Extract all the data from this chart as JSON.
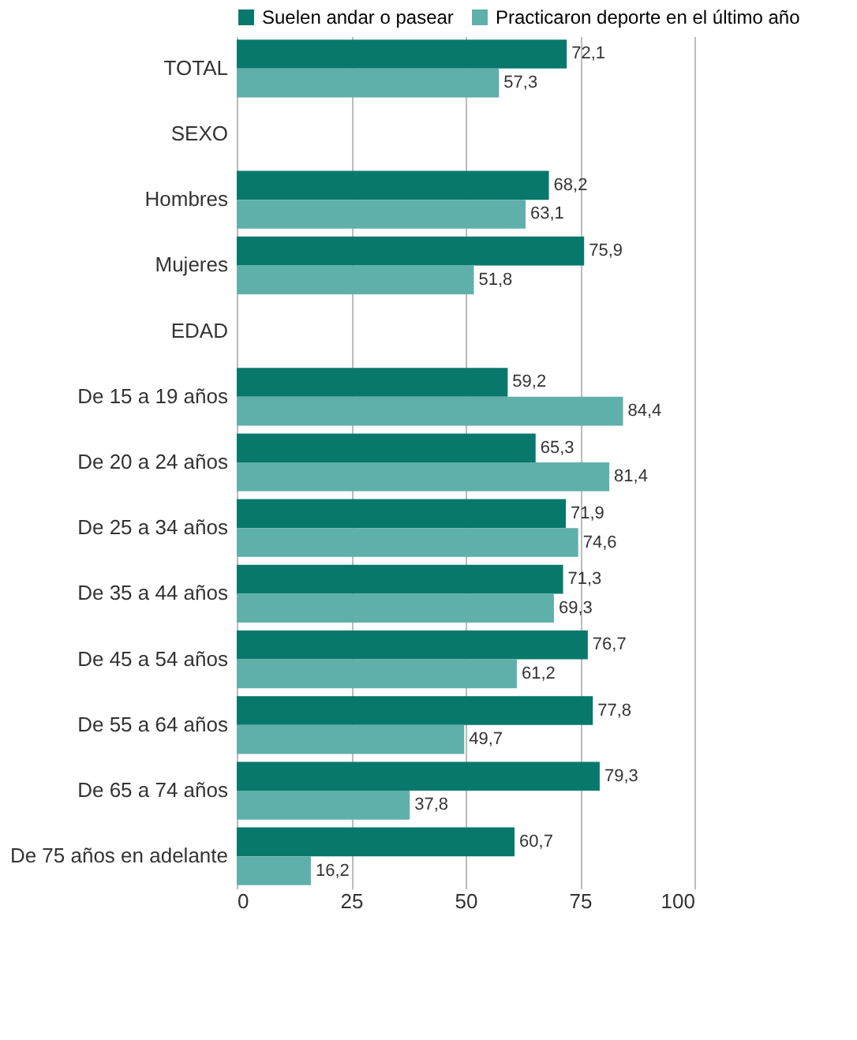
{
  "chart_data": {
    "type": "bar",
    "orientation": "horizontal",
    "categories": [
      "TOTAL",
      "SEXO",
      "Hombres",
      "Mujeres",
      "EDAD",
      "De 15 a 19 años",
      "De 20 a 24 años",
      "De 25 a 34 años",
      "De 35 a 44 años",
      "De 45 a 54 años",
      "De 55 a 64 años",
      "De 65 a 74 años",
      "De 75 años en adelante"
    ],
    "series": [
      {
        "name": "Suelen andar o pasear",
        "color": "#08786c",
        "values": [
          72.1,
          null,
          68.2,
          75.9,
          null,
          59.2,
          65.3,
          71.9,
          71.3,
          76.7,
          77.8,
          79.3,
          60.7
        ],
        "value_labels": [
          "72,1",
          null,
          "68,2",
          "75,9",
          null,
          "59,2",
          "65,3",
          "71,9",
          "71,3",
          "76,7",
          "77,8",
          "79,3",
          "60,7"
        ]
      },
      {
        "name": "Practicaron deporte en el último año",
        "color": "#5fb0aa",
        "values": [
          57.3,
          null,
          63.1,
          51.8,
          null,
          84.4,
          81.4,
          74.6,
          69.3,
          61.2,
          49.7,
          37.8,
          16.2
        ],
        "value_labels": [
          "57,3",
          null,
          "63,1",
          "51,8",
          null,
          "84,4",
          "81,4",
          "74,6",
          "69,3",
          "61,2",
          "49,7",
          "37,8",
          "16,2"
        ]
      }
    ],
    "xlim": [
      0,
      100
    ],
    "xticks": [
      0,
      25,
      50,
      75,
      100
    ],
    "grid": "x",
    "legend": "top"
  }
}
